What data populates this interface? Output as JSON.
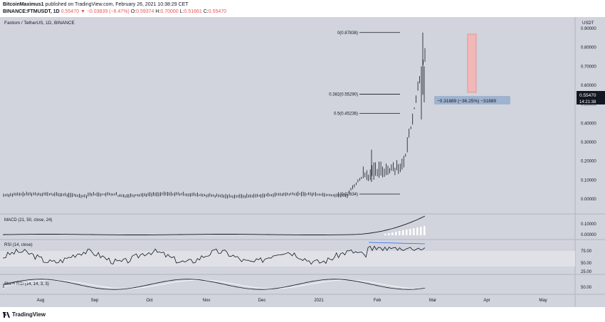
{
  "header": {
    "author": "BitcoinMaximus1",
    "published": "published on TradingView.com, February 26, 2021 10:38:29 CET",
    "symbol": "BINANCE:FTMUSDT, 1D",
    "price": "0.55470",
    "change": "▼ −0.03839 (−6.47%)",
    "o_label": "O:",
    "o_val": "0.59374",
    "h_label": "H:",
    "h_val": "0.70000",
    "l_label": "L:",
    "l_val": "0.51661",
    "c_label": "C:",
    "c_val": "0.55470"
  },
  "chart": {
    "legend": "Fantom / TetherUS, 1D, BINANCE",
    "currency": "USDT",
    "price_ticks": [
      "0.90000",
      "0.80000",
      "0.70000",
      "0.60000",
      "0.50000",
      "0.40000",
      "0.30000",
      "0.20000",
      "0.10000",
      "0.00000"
    ],
    "last_price": "0.55470",
    "countdown": "14:21:38",
    "fib_levels": [
      {
        "label": "0(0.87838)",
        "price": 0.87838
      },
      {
        "label": "0.382(0.55290)",
        "price": 0.5529
      },
      {
        "label": "0.5(0.45236)",
        "price": 0.45236
      },
      {
        "label": "1(0.02634)",
        "price": 0.02634
      }
    ],
    "measure_label": "−0.31889 (−36.25%) −31889",
    "macd_label": "MACD (21, 50, close, 24)",
    "macd_ticks": [
      "0.10000",
      "0.00000"
    ],
    "rsi_label": "RSI (14, close)",
    "rsi_ticks": [
      "75.00",
      "50.00",
      "25.00"
    ],
    "stoch_label": "Stoch RSI (14, 14, 3, 3)",
    "stoch_ticks": [
      "50.00"
    ],
    "time_labels": [
      "Aug",
      "Sep",
      "Oct",
      "Nov",
      "Dec",
      "2021",
      "Feb",
      "Mar",
      "Apr",
      "May"
    ]
  },
  "footer": {
    "brand": "TradingView"
  },
  "colors": {
    "bg": "#d1d4dc",
    "candle": "#131722",
    "fib": "#131722",
    "measure_fill": "#f2b8b8",
    "measure_label_bg": "#9fb3cf",
    "rsi_line": "#2962ff"
  }
}
